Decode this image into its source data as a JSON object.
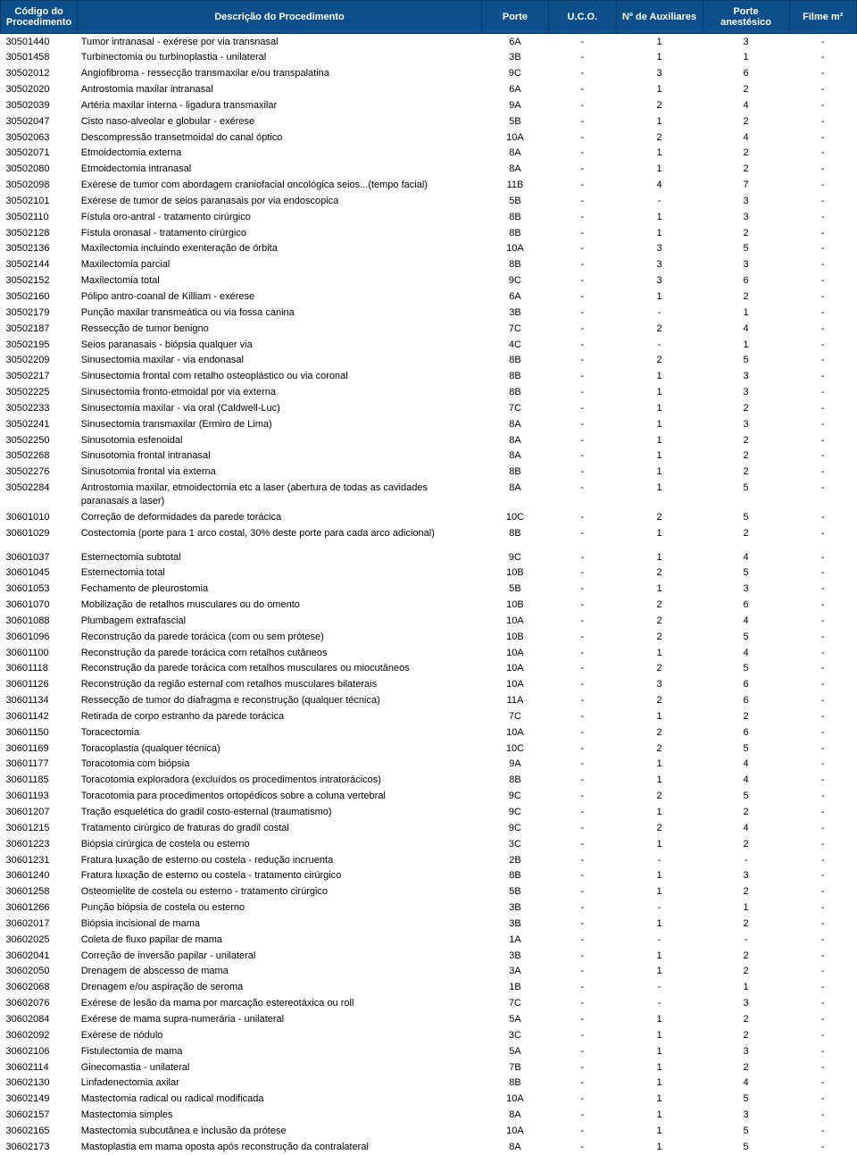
{
  "header": {
    "bg_color": "#0d4f8b",
    "text_color": "#ffffff",
    "border_color": "#0a3d6b",
    "columns": [
      "Código do Procedimento",
      "Descrição do Procedimento",
      "Porte",
      "U.C.O.",
      "Nº de Auxiliares",
      "Porte anestésico",
      "Filme m²"
    ]
  },
  "body": {
    "font_size": 11,
    "text_color": "#000000",
    "bg_color": "#ffffff"
  },
  "rows": [
    {
      "code": "30501440",
      "desc": "Tumor intranasal - exérese por via transnasal",
      "porte": "6A",
      "uco": "-",
      "aux": "1",
      "anest": "3",
      "filme": "-"
    },
    {
      "code": "30501458",
      "desc": "Turbinectomia ou turbinoplastia - unilateral",
      "porte": "3B",
      "uco": "-",
      "aux": "1",
      "anest": "1",
      "filme": "-"
    },
    {
      "code": "30502012",
      "desc": "Angiofibroma - ressecção transmaxilar e/ou transpalatina",
      "porte": "9C",
      "uco": "-",
      "aux": "3",
      "anest": "6",
      "filme": "-"
    },
    {
      "code": "30502020",
      "desc": "Antrostomia maxilar intranasal",
      "porte": "6A",
      "uco": "-",
      "aux": "1",
      "anest": "2",
      "filme": "-"
    },
    {
      "code": "30502039",
      "desc": "Artéria maxilar interna - ligadura transmaxilar",
      "porte": "9A",
      "uco": "-",
      "aux": "2",
      "anest": "4",
      "filme": "-"
    },
    {
      "code": "30502047",
      "desc": "Cisto naso-alveolar e globular - exérese",
      "porte": "5B",
      "uco": "-",
      "aux": "1",
      "anest": "2",
      "filme": "-"
    },
    {
      "code": "30502063",
      "desc": "Descompressão transetmoidal do canal óptico",
      "porte": "10A",
      "uco": "-",
      "aux": "2",
      "anest": "4",
      "filme": "-"
    },
    {
      "code": "30502071",
      "desc": "Etmoidectomia externa",
      "porte": "8A",
      "uco": "-",
      "aux": "1",
      "anest": "2",
      "filme": "-"
    },
    {
      "code": "30502080",
      "desc": "Etmoidectomia intranasal",
      "porte": "8A",
      "uco": "-",
      "aux": "1",
      "anest": "2",
      "filme": "-"
    },
    {
      "code": "30502098",
      "desc": "Exérese de tumor com abordagem craniofacial oncológica  seios...(tempo facial)",
      "porte": "11B",
      "uco": "-",
      "aux": "4",
      "anest": "7",
      "filme": "-"
    },
    {
      "code": "30502101",
      "desc": "Exérese de tumor de seios paranasais por via endoscopica",
      "porte": "5B",
      "uco": "-",
      "aux": "-",
      "anest": "3",
      "filme": "-"
    },
    {
      "code": "30502110",
      "desc": "Fístula oro-antral - tratamento cirúrgico",
      "porte": "8B",
      "uco": "-",
      "aux": "1",
      "anest": "3",
      "filme": "-"
    },
    {
      "code": "30502128",
      "desc": "Fístula oronasal - tratamento cirúrgico",
      "porte": "8B",
      "uco": "-",
      "aux": "1",
      "anest": "2",
      "filme": "-"
    },
    {
      "code": "30502136",
      "desc": "Maxilectomia incluindo exenteração de órbita",
      "porte": "10A",
      "uco": "-",
      "aux": "3",
      "anest": "5",
      "filme": "-"
    },
    {
      "code": "30502144",
      "desc": "Maxilectomia parcial",
      "porte": "8B",
      "uco": "-",
      "aux": "3",
      "anest": "3",
      "filme": "-"
    },
    {
      "code": "30502152",
      "desc": "Maxilectomia total",
      "porte": "9C",
      "uco": "-",
      "aux": "3",
      "anest": "6",
      "filme": "-"
    },
    {
      "code": "30502160",
      "desc": "Pólipo antro-coanal de Killiam - exérese",
      "porte": "6A",
      "uco": "-",
      "aux": "1",
      "anest": "2",
      "filme": "-"
    },
    {
      "code": "30502179",
      "desc": "Punção maxilar transmeática ou via fossa canina",
      "porte": "3B",
      "uco": "-",
      "aux": "-",
      "anest": "1",
      "filme": "-"
    },
    {
      "code": "30502187",
      "desc": "Ressecção de tumor benigno",
      "porte": "7C",
      "uco": "-",
      "aux": "2",
      "anest": "4",
      "filme": "-"
    },
    {
      "code": "30502195",
      "desc": "Seios paranasais - biópsia qualquer via",
      "porte": "4C",
      "uco": "-",
      "aux": "-",
      "anest": "1",
      "filme": "-"
    },
    {
      "code": "30502209",
      "desc": "Sinusectomia maxilar - via endonasal",
      "porte": "8B",
      "uco": "-",
      "aux": "2",
      "anest": "5",
      "filme": "-"
    },
    {
      "code": "30502217",
      "desc": "Sinusectomia frontal com retalho osteoplástico ou via coronal",
      "porte": "8B",
      "uco": "-",
      "aux": "1",
      "anest": "3",
      "filme": "-"
    },
    {
      "code": "30502225",
      "desc": "Sinusectomia fronto-etmoidal por via externa",
      "porte": "8B",
      "uco": "-",
      "aux": "1",
      "anest": "3",
      "filme": "-"
    },
    {
      "code": "30502233",
      "desc": "Sinusectomia maxilar - via oral (Caldwell-Luc)",
      "porte": "7C",
      "uco": "-",
      "aux": "1",
      "anest": "2",
      "filme": "-"
    },
    {
      "code": "30502241",
      "desc": "Sinusectomia transmaxilar (Ermiro de Lima)",
      "porte": "8A",
      "uco": "-",
      "aux": "1",
      "anest": "3",
      "filme": "-"
    },
    {
      "code": "30502250",
      "desc": "Sinusotomia esfenoidal",
      "porte": "8A",
      "uco": "-",
      "aux": "1",
      "anest": "2",
      "filme": "-"
    },
    {
      "code": "30502268",
      "desc": "Sinusotomia frontal intranasal",
      "porte": "8A",
      "uco": "-",
      "aux": "1",
      "anest": "2",
      "filme": "-"
    },
    {
      "code": "30502276",
      "desc": "Sinusotomia frontal via externa",
      "porte": "8B",
      "uco": "-",
      "aux": "1",
      "anest": "2",
      "filme": "-"
    },
    {
      "code": "30502284",
      "desc": "Antrostomia maxilar, etmoidectomia etc a laser (abertura de todas as cavidades paranasais a laser)",
      "porte": "8A",
      "uco": "-",
      "aux": "1",
      "anest": "5",
      "filme": "-"
    },
    {
      "code": "30601010",
      "desc": "Correção de deformidades da parede torácica",
      "porte": "10C",
      "uco": "-",
      "aux": "2",
      "anest": "5",
      "filme": "-"
    },
    {
      "code": "30601029",
      "desc": "Costectomia (porte para 1 arco costal, 30% deste porte para cada arco adicional)",
      "porte": "8B",
      "uco": "-",
      "aux": "1",
      "anest": "2",
      "filme": "-",
      "gap_after": true
    },
    {
      "code": "30601037",
      "desc": "Esternectomia subtotal",
      "porte": "9C",
      "uco": "-",
      "aux": "1",
      "anest": "4",
      "filme": "-"
    },
    {
      "code": "30601045",
      "desc": "Esternectomia total",
      "porte": "10B",
      "uco": "-",
      "aux": "2",
      "anest": "5",
      "filme": "-"
    },
    {
      "code": "30601053",
      "desc": "Fechamento de pleurostomia",
      "porte": "5B",
      "uco": "-",
      "aux": "1",
      "anest": "3",
      "filme": "-"
    },
    {
      "code": "30601070",
      "desc": "Mobilização de retalhos musculares ou do omento",
      "porte": "10B",
      "uco": "-",
      "aux": "2",
      "anest": "6",
      "filme": "-"
    },
    {
      "code": "30601088",
      "desc": "Plumbagem extrafascial",
      "porte": "10A",
      "uco": "-",
      "aux": "2",
      "anest": "4",
      "filme": "-"
    },
    {
      "code": "30601096",
      "desc": "Reconstrução da parede torácica (com ou sem prótese)",
      "porte": "10B",
      "uco": "-",
      "aux": "2",
      "anest": "5",
      "filme": "-"
    },
    {
      "code": "30601100",
      "desc": "Reconstrução da parede torácica com retalhos cutâneos",
      "porte": "10A",
      "uco": "-",
      "aux": "1",
      "anest": "4",
      "filme": "-"
    },
    {
      "code": "30601118",
      "desc": "Reconstrução da parede torácica com retalhos musculares ou miocutâneos",
      "porte": "10A",
      "uco": "-",
      "aux": "2",
      "anest": "5",
      "filme": "-"
    },
    {
      "code": "30601126",
      "desc": "Reconstrução da região esternal com retalhos musculares bilaterais",
      "porte": "10A",
      "uco": "-",
      "aux": "3",
      "anest": "6",
      "filme": "-"
    },
    {
      "code": "30601134",
      "desc": "Ressecção de tumor do diafragma e reconstrução (qualquer técnica)",
      "porte": "11A",
      "uco": "-",
      "aux": "2",
      "anest": "6",
      "filme": "-"
    },
    {
      "code": "30601142",
      "desc": "Retirada de corpo estranho da parede torácica",
      "porte": "7C",
      "uco": "-",
      "aux": "1",
      "anest": "2",
      "filme": "-"
    },
    {
      "code": "30601150",
      "desc": "Toracectomia",
      "porte": "10A",
      "uco": "-",
      "aux": "2",
      "anest": "6",
      "filme": "-"
    },
    {
      "code": "30601169",
      "desc": "Toracoplastia (qualquer técnica)",
      "porte": "10C",
      "uco": "-",
      "aux": "2",
      "anest": "5",
      "filme": "-"
    },
    {
      "code": "30601177",
      "desc": "Toracotomia com biópsia",
      "porte": "9A",
      "uco": "-",
      "aux": "1",
      "anest": "4",
      "filme": "-"
    },
    {
      "code": "30601185",
      "desc": "Toracotomia exploradora (excluídos os procedimentos intratorácicos)",
      "porte": "8B",
      "uco": "-",
      "aux": "1",
      "anest": "4",
      "filme": "-"
    },
    {
      "code": "30601193",
      "desc": "Toracotomia para procedimentos ortopédicos sobre a coluna vertebral",
      "porte": "9C",
      "uco": "-",
      "aux": "2",
      "anest": "5",
      "filme": "-"
    },
    {
      "code": "30601207",
      "desc": "Tração esquelética do gradil costo-esternal (traumatismo)",
      "porte": "9C",
      "uco": "-",
      "aux": "1",
      "anest": "2",
      "filme": "-"
    },
    {
      "code": "30601215",
      "desc": "Tratamento cirúrgico de fraturas do gradil costal",
      "porte": "9C",
      "uco": "-",
      "aux": "2",
      "anest": "4",
      "filme": "-"
    },
    {
      "code": "30601223",
      "desc": "Biópsia cirúrgica de costela ou esterno",
      "porte": "3C",
      "uco": "-",
      "aux": "1",
      "anest": "2",
      "filme": "-"
    },
    {
      "code": "30601231",
      "desc": "Fratura luxação de esterno ou costela - redução incruenta",
      "porte": "2B",
      "uco": "-",
      "aux": "-",
      "anest": "-",
      "filme": "-"
    },
    {
      "code": "30601240",
      "desc": "Fratura luxação de esterno ou costela - tratamento cirúrgico",
      "porte": "8B",
      "uco": "-",
      "aux": "1",
      "anest": "3",
      "filme": "-"
    },
    {
      "code": "30601258",
      "desc": "Osteomielite de costela ou esterno - tratamento cirúrgico",
      "porte": "5B",
      "uco": "-",
      "aux": "1",
      "anest": "2",
      "filme": "-"
    },
    {
      "code": "30601266",
      "desc": "Punção biópsia de costela ou esterno",
      "porte": "3B",
      "uco": "-",
      "aux": "-",
      "anest": "1",
      "filme": "-"
    },
    {
      "code": "30602017",
      "desc": "Biópsia incisional de mama",
      "porte": "3B",
      "uco": "-",
      "aux": "1",
      "anest": "2",
      "filme": "-"
    },
    {
      "code": "30602025",
      "desc": "Coleta de fluxo papilar de mama",
      "porte": "1A",
      "uco": "-",
      "aux": "-",
      "anest": "-",
      "filme": "-"
    },
    {
      "code": "30602041",
      "desc": "Correção de inversão papilar - unilateral",
      "porte": "3B",
      "uco": "-",
      "aux": "1",
      "anest": "2",
      "filme": "-"
    },
    {
      "code": "30602050",
      "desc": "Drenagem de abscesso de mama",
      "porte": "3A",
      "uco": "-",
      "aux": "1",
      "anest": "2",
      "filme": "-"
    },
    {
      "code": "30602068",
      "desc": "Drenagem e/ou aspiração de seroma",
      "porte": "1B",
      "uco": "-",
      "aux": "-",
      "anest": "1",
      "filme": "-"
    },
    {
      "code": "30602076",
      "desc": "Exérese de lesão da mama por marcação estereotáxica ou roll",
      "porte": "7C",
      "uco": "-",
      "aux": "-",
      "anest": "3",
      "filme": "-"
    },
    {
      "code": "30602084",
      "desc": "Exérese de mama supra-numerária - unilateral",
      "porte": "5A",
      "uco": "-",
      "aux": "1",
      "anest": "2",
      "filme": "-"
    },
    {
      "code": "30602092",
      "desc": "Exérese de nódulo",
      "porte": "3C",
      "uco": "-",
      "aux": "1",
      "anest": "2",
      "filme": "-"
    },
    {
      "code": "30602106",
      "desc": "Fistulectomia de mama",
      "porte": "5A",
      "uco": "-",
      "aux": "1",
      "anest": "3",
      "filme": "-"
    },
    {
      "code": "30602114",
      "desc": "Ginecomastia - unilateral",
      "porte": "7B",
      "uco": "-",
      "aux": "1",
      "anest": "2",
      "filme": "-"
    },
    {
      "code": "30602130",
      "desc": "Linfadenectomia axilar",
      "porte": "8B",
      "uco": "-",
      "aux": "1",
      "anest": "4",
      "filme": "-"
    },
    {
      "code": "30602149",
      "desc": "Mastectomia radical ou radical modificada",
      "porte": "10A",
      "uco": "-",
      "aux": "1",
      "anest": "5",
      "filme": "-"
    },
    {
      "code": "30602157",
      "desc": "Mastectomia simples",
      "porte": "8A",
      "uco": "-",
      "aux": "1",
      "anest": "3",
      "filme": "-"
    },
    {
      "code": "30602165",
      "desc": "Mastectomia subcutânea e inclusão da prótese",
      "porte": "10A",
      "uco": "-",
      "aux": "1",
      "anest": "5",
      "filme": "-"
    },
    {
      "code": "30602173",
      "desc": "Mastoplastia em mama oposta após reconstrução da contralateral",
      "porte": "8A",
      "uco": "-",
      "aux": "1",
      "anest": "5",
      "filme": "-"
    }
  ]
}
